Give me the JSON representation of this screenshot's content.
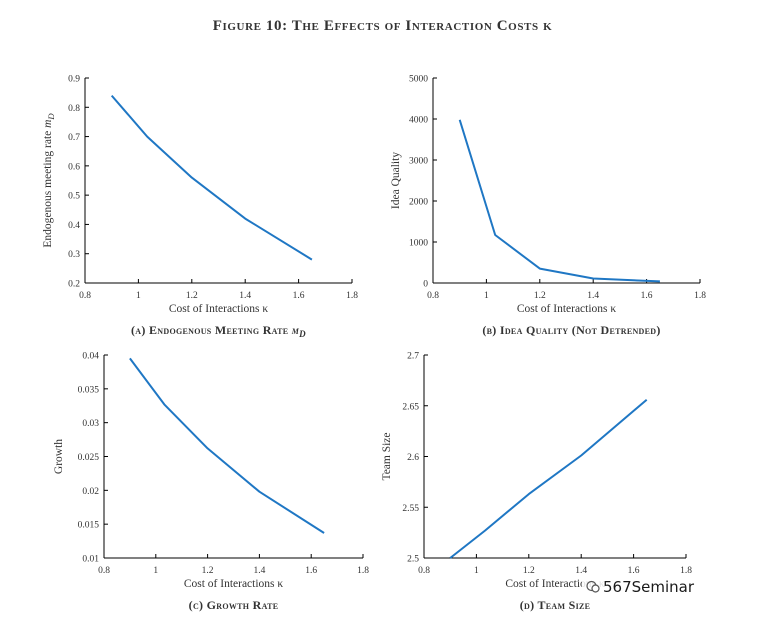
{
  "figure_title": "Figure 10: The Effects of Interaction Costs κ",
  "watermark": "567Seminar",
  "series_color": "#1f77c4",
  "chart_data": [
    {
      "id": "a",
      "type": "line",
      "title": "",
      "xlabel": "Cost of Interactions κ",
      "ylabel": "Endogenous meeting rate m_D",
      "caption": "(a) Endogenous Meeting Rate m_D",
      "xlim": [
        0.8,
        1.8
      ],
      "ylim": [
        0.2,
        0.9
      ],
      "xticks": [
        0.8,
        1,
        1.2,
        1.4,
        1.6,
        1.8
      ],
      "xtick_labels": [
        "0.8",
        "1",
        "1.2",
        "1.4",
        "1.6",
        "1.8"
      ],
      "yticks": [
        0.2,
        0.3,
        0.4,
        0.5,
        0.6,
        0.7,
        0.8,
        0.9
      ],
      "ytick_labels": [
        "0.2",
        "0.3",
        "0.4",
        "0.5",
        "0.6",
        "0.7",
        "0.8",
        "0.9"
      ],
      "x": [
        0.9,
        1.033,
        1.2,
        1.4,
        1.65
      ],
      "y": [
        0.84,
        0.7,
        0.56,
        0.42,
        0.28
      ]
    },
    {
      "id": "b",
      "type": "line",
      "title": "",
      "xlabel": "Cost of Interactions κ",
      "ylabel": "Idea Quality",
      "caption": "(b) Idea Quality (Not Detrended)",
      "xlim": [
        0.8,
        1.8
      ],
      "ylim": [
        0,
        5000
      ],
      "xticks": [
        0.8,
        1,
        1.2,
        1.4,
        1.6,
        1.8
      ],
      "xtick_labels": [
        "0.8",
        "1",
        "1.2",
        "1.4",
        "1.6",
        "1.8"
      ],
      "yticks": [
        0,
        1000,
        2000,
        3000,
        4000,
        5000
      ],
      "ytick_labels": [
        "0",
        "1000",
        "2000",
        "3000",
        "4000",
        "5000"
      ],
      "x": [
        0.9,
        1.033,
        1.2,
        1.4,
        1.65
      ],
      "y": [
        3980,
        1170,
        350,
        110,
        40
      ]
    },
    {
      "id": "c",
      "type": "line",
      "title": "",
      "xlabel": "Cost of Interactions κ",
      "ylabel": "Growth",
      "caption": "(c) Growth Rate",
      "xlim": [
        0.8,
        1.8
      ],
      "ylim": [
        0.01,
        0.04
      ],
      "xticks": [
        0.8,
        1,
        1.2,
        1.4,
        1.6,
        1.8
      ],
      "xtick_labels": [
        "0.8",
        "1",
        "1.2",
        "1.4",
        "1.6",
        "1.8"
      ],
      "yticks": [
        0.01,
        0.015,
        0.02,
        0.025,
        0.03,
        0.035,
        0.04
      ],
      "ytick_labels": [
        "0.01",
        "0.015",
        "0.02",
        "0.025",
        "0.03",
        "0.035",
        "0.04"
      ],
      "x": [
        0.9,
        1.033,
        1.2,
        1.4,
        1.65
      ],
      "y": [
        0.0395,
        0.0327,
        0.0262,
        0.0198,
        0.0137
      ]
    },
    {
      "id": "d",
      "type": "line",
      "title": "",
      "xlabel": "Cost of Interactions κ",
      "ylabel": "Team Size",
      "caption": "(d) Team Size",
      "xlim": [
        0.8,
        1.8
      ],
      "ylim": [
        2.5,
        2.7
      ],
      "xticks": [
        0.8,
        1,
        1.2,
        1.4,
        1.6,
        1.8
      ],
      "xtick_labels": [
        "0.8",
        "1",
        "1.2",
        "1.4",
        "1.6",
        "1.8"
      ],
      "yticks": [
        2.5,
        2.55,
        2.6,
        2.65,
        2.7
      ],
      "ytick_labels": [
        "2.5",
        "2.55",
        "2.6",
        "2.65",
        "2.7"
      ],
      "x": [
        0.9,
        1.033,
        1.2,
        1.4,
        1.65
      ],
      "y": [
        2.5,
        2.527,
        2.563,
        2.601,
        2.656
      ]
    }
  ]
}
